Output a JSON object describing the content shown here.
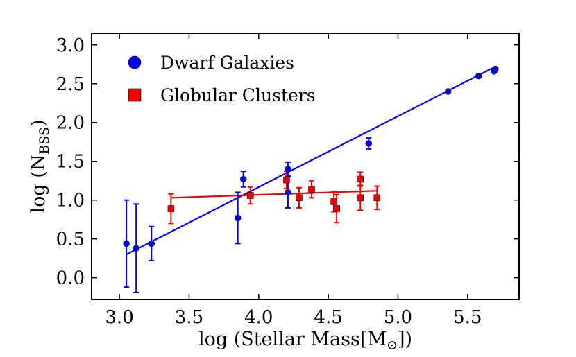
{
  "chart_data": {
    "type": "scatter",
    "xlabel": "log (Stellar Mass[M",
    "xlabel_sub": "⊙",
    "xlabel_end": "])",
    "ylabel": "log (N",
    "ylabel_sub": "BSS",
    "ylabel_end": ")",
    "xlim": [
      2.8,
      5.87
    ],
    "ylim": [
      -0.28,
      3.15
    ],
    "xticks": [
      3.0,
      3.5,
      4.0,
      4.5,
      5.0,
      5.5
    ],
    "xtick_labels": [
      "3.0",
      "3.5",
      "4.0",
      "4.5",
      "5.0",
      "5.5"
    ],
    "yticks": [
      0.0,
      0.5,
      1.0,
      1.5,
      2.0,
      2.5,
      3.0
    ],
    "ytick_labels": [
      "0.0",
      "0.5",
      "1.0",
      "1.5",
      "2.0",
      "2.5",
      "3.0"
    ],
    "legend_position": "top-left",
    "series": [
      {
        "name": "Dwarf Galaxies",
        "marker": "circle",
        "color": "#0000ee",
        "points": [
          {
            "x": 3.05,
            "y": 0.44,
            "err": 0.56
          },
          {
            "x": 3.12,
            "y": 0.38,
            "err": 0.57
          },
          {
            "x": 3.23,
            "y": 0.44,
            "err": 0.22
          },
          {
            "x": 3.85,
            "y": 0.77,
            "err": 0.33
          },
          {
            "x": 3.89,
            "y": 1.27,
            "err": 0.1
          },
          {
            "x": 4.21,
            "y": 1.4,
            "err": 0.09
          },
          {
            "x": 4.21,
            "y": 1.1,
            "err": 0.2
          },
          {
            "x": 4.79,
            "y": 1.73,
            "err": 0.07
          },
          {
            "x": 5.36,
            "y": 2.4,
            "err": 0.0
          },
          {
            "x": 5.58,
            "y": 2.6,
            "err": 0.0
          },
          {
            "x": 5.69,
            "y": 2.66,
            "err": 0.0
          },
          {
            "x": 5.7,
            "y": 2.69,
            "err": 0.0
          }
        ],
        "fit": {
          "x": [
            3.05,
            5.7
          ],
          "y": [
            0.3,
            2.72
          ]
        }
      },
      {
        "name": "Globular Clusters",
        "marker": "square",
        "color": "#ee0000",
        "points": [
          {
            "x": 3.37,
            "y": 0.89,
            "err": 0.19
          },
          {
            "x": 3.94,
            "y": 1.06,
            "err": 0.11
          },
          {
            "x": 4.2,
            "y": 1.26,
            "err": 0.11
          },
          {
            "x": 4.29,
            "y": 1.03,
            "err": 0.13
          },
          {
            "x": 4.38,
            "y": 1.14,
            "err": 0.11
          },
          {
            "x": 4.54,
            "y": 0.98,
            "err": 0.13
          },
          {
            "x": 4.56,
            "y": 0.89,
            "err": 0.18
          },
          {
            "x": 4.73,
            "y": 1.27,
            "err": 0.09
          },
          {
            "x": 4.73,
            "y": 1.03,
            "err": 0.16
          },
          {
            "x": 4.85,
            "y": 1.03,
            "err": 0.15
          }
        ],
        "fit": {
          "x": [
            3.37,
            4.85
          ],
          "y": [
            1.03,
            1.12
          ]
        }
      }
    ]
  }
}
